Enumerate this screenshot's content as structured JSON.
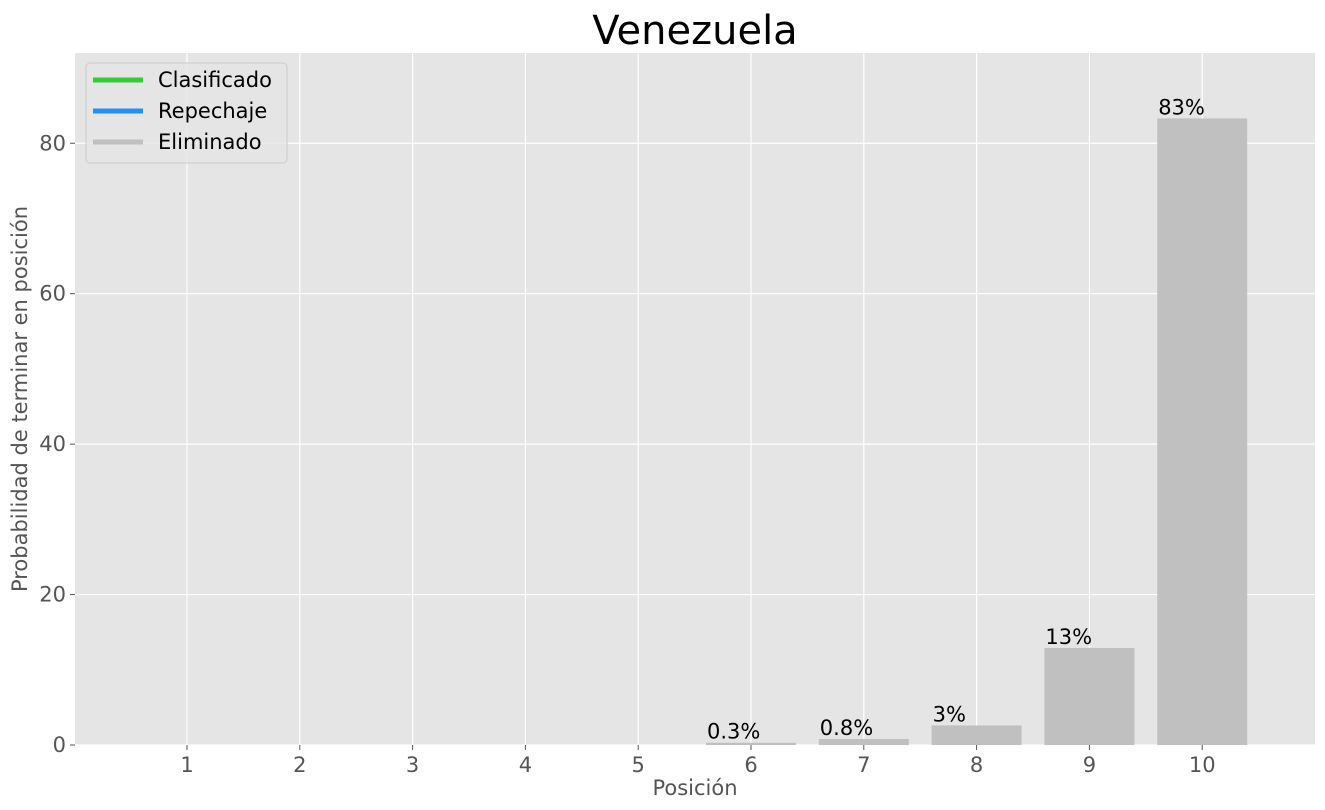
{
  "chart_data": {
    "type": "bar",
    "title": "Venezuela",
    "xlabel": "Posición",
    "ylabel": "Probabilidad de terminar en posición",
    "categories": [
      "1",
      "2",
      "3",
      "4",
      "5",
      "6",
      "7",
      "8",
      "9",
      "10"
    ],
    "values": [
      0,
      0,
      0,
      0,
      0,
      0.3,
      0.8,
      2.6,
      12.9,
      83.3
    ],
    "data_labels": [
      "",
      "",
      "",
      "",
      "",
      "0.3%",
      "0.8%",
      "3%",
      "13%",
      "83%"
    ],
    "ylim": [
      0,
      92
    ],
    "yticks": [
      0,
      20,
      40,
      60,
      80
    ],
    "grid": true,
    "legend": {
      "position": "top-left",
      "entries": [
        {
          "label": "Clasificado",
          "color": "#32cd32"
        },
        {
          "label": "Repechaje",
          "color": "#1e90ff"
        },
        {
          "label": "Eliminado",
          "color": "#c0c0c0"
        }
      ]
    },
    "bar_color": "#c0c0c0",
    "background": "#e5e5e5"
  }
}
